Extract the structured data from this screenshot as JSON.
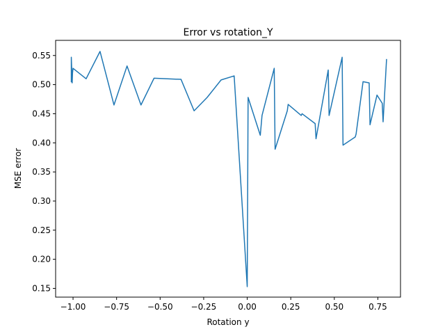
{
  "chart_data": {
    "type": "line",
    "title": "Error vs rotation_Y",
    "xlabel": "Rotation y",
    "ylabel": "MSE error",
    "xlim": [
      -1.1,
      0.88
    ],
    "ylim": [
      0.135,
      0.576
    ],
    "x_ticks": [
      -1.0,
      -0.75,
      -0.5,
      -0.25,
      0.0,
      0.25,
      0.5,
      0.75
    ],
    "x_tick_labels": [
      "−1.00",
      "−0.75",
      "−0.50",
      "−0.25",
      "0.00",
      "0.25",
      "0.50",
      "0.75"
    ],
    "y_ticks": [
      0.15,
      0.2,
      0.25,
      0.3,
      0.35,
      0.4,
      0.45,
      0.5,
      0.55
    ],
    "y_tick_labels": [
      "0.15",
      "0.20",
      "0.25",
      "0.30",
      "0.35",
      "0.40",
      "0.45",
      "0.50",
      "0.55"
    ],
    "grid": false,
    "series": [
      {
        "color": "#1f77b4",
        "x": [
          -1.01,
          -1.01,
          -1.005,
          -1.003,
          -1.0,
          -0.925,
          -0.845,
          -0.765,
          -0.69,
          -0.61,
          -0.535,
          -0.38,
          -0.305,
          -0.23,
          -0.15,
          -0.075,
          0.0,
          0.005,
          0.075,
          0.085,
          0.155,
          0.16,
          0.23,
          0.235,
          0.31,
          0.315,
          0.39,
          0.395,
          0.465,
          0.47,
          0.545,
          0.55,
          0.62,
          0.625,
          0.665,
          0.7,
          0.705,
          0.745,
          0.775,
          0.78,
          0.8
        ],
        "y": [
          0.504,
          0.547,
          0.503,
          0.52,
          0.528,
          0.51,
          0.557,
          0.465,
          0.532,
          0.465,
          0.511,
          0.509,
          0.455,
          0.478,
          0.508,
          0.515,
          0.153,
          0.478,
          0.413,
          0.447,
          0.528,
          0.389,
          0.455,
          0.466,
          0.447,
          0.45,
          0.433,
          0.407,
          0.525,
          0.447,
          0.547,
          0.396,
          0.41,
          0.415,
          0.505,
          0.503,
          0.431,
          0.482,
          0.468,
          0.436,
          0.544
        ]
      }
    ]
  }
}
